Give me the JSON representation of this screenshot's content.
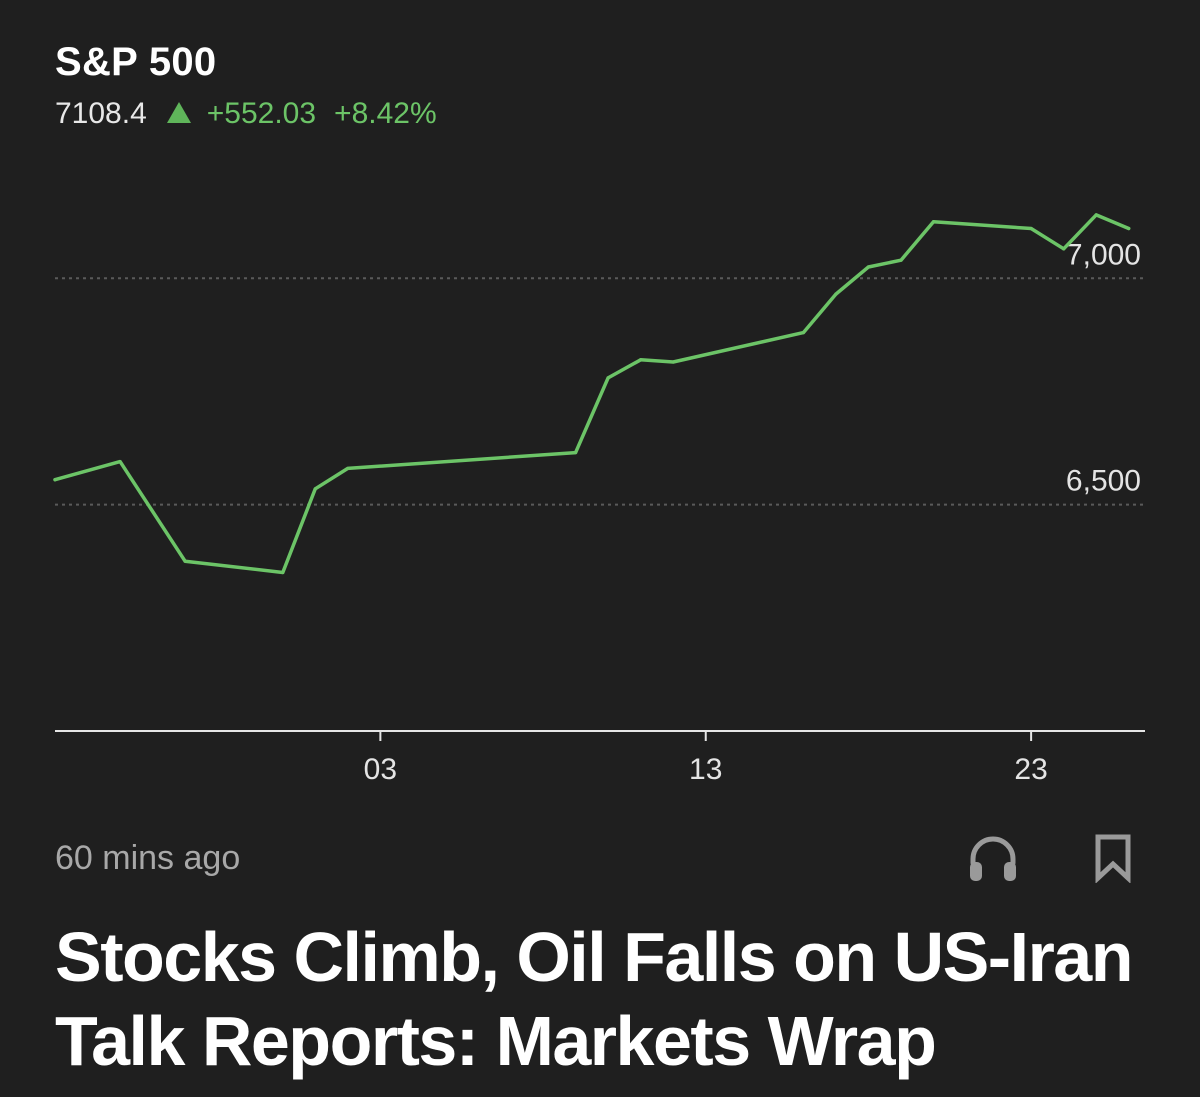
{
  "quote": {
    "ticker": "S&P 500",
    "price": "7108.4",
    "change": "+552.03",
    "change_pct": "+8.42%",
    "direction_icon": "up-triangle-icon",
    "up_color": "#6cc467"
  },
  "chart_data": {
    "type": "line",
    "xlabel": "",
    "ylabel": "",
    "x_ticks": [
      {
        "label": "03",
        "x": 3
      },
      {
        "label": "13",
        "x": 13
      },
      {
        "label": "23",
        "x": 23
      }
    ],
    "y_ticks": [
      {
        "label": "7,000",
        "value": 7000
      },
      {
        "label": "6,500",
        "value": 6500
      }
    ],
    "xlim": [
      -7,
      26.5
    ],
    "ylim": [
      6000,
      7100
    ],
    "grid": "horizontal dotted",
    "line_color": "#6cc467",
    "series": [
      {
        "x": [
          -7,
          -5,
          -3,
          0,
          1,
          2,
          9,
          10,
          11,
          12,
          16,
          17,
          18,
          19,
          20,
          23,
          24,
          25,
          26
        ],
        "y": [
          6555,
          6595,
          6375,
          6350,
          6535,
          6580,
          6615,
          6780,
          6820,
          6815,
          6880,
          6965,
          7025,
          7040,
          7125,
          7110,
          7065,
          7140,
          7110
        ]
      }
    ]
  },
  "article": {
    "timestamp": "60 mins ago",
    "listen_icon": "headphones-icon",
    "bookmark_icon": "bookmark-icon",
    "headline": "Stocks Climb, Oil Falls on US-Iran Talk Reports: Markets Wrap"
  }
}
